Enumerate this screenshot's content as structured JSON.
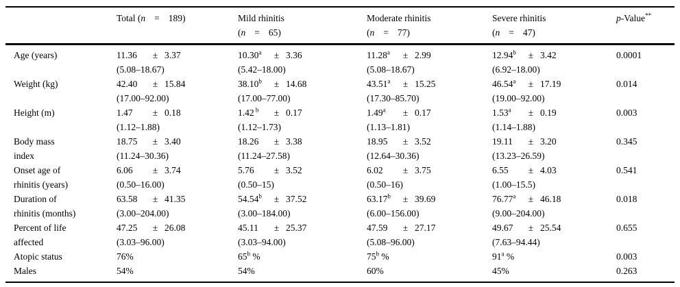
{
  "table": {
    "columns": [
      {
        "empty": ""
      },
      {
        "pre": "Total (",
        "n": "n",
        "eq": "=",
        "post": "189)"
      },
      {
        "line1": "Mild rhinitis",
        "pre": "(",
        "n": "n",
        "eq": "=",
        "post": "65)"
      },
      {
        "line1": "Moderate rhinitis",
        "pre": "(",
        "n": "n",
        "eq": "=",
        "post": "77)"
      },
      {
        "line1": "Severe rhinitis",
        "pre": "(",
        "n": "n",
        "eq": "=",
        "post": "47)"
      },
      {
        "p_pre": "p",
        "p_rest": "-Value",
        "sup": "**"
      }
    ],
    "rows": [
      {
        "label": "Age (years)",
        "label2": "",
        "cells": [
          {
            "v": "11.36",
            "sup": "",
            "pm": "±",
            "sd": "3.37",
            "range": "(5.08–18.67)"
          },
          {
            "v": "10.30",
            "sup": "a",
            "pm": "±",
            "sd": "3.36",
            "range": "(5.42–18.00)"
          },
          {
            "v": "11.28",
            "sup": "a",
            "pm": "±",
            "sd": "2.99",
            "range": "(5.08–18.67)"
          },
          {
            "v": "12.94",
            "sup": "b",
            "pm": "±",
            "sd": "3.42",
            "range": "(6.92–18.00)"
          }
        ],
        "p": "0.0001"
      },
      {
        "label": "Weight (kg)",
        "label2": "",
        "cells": [
          {
            "v": "42.40",
            "sup": "",
            "pm": "±",
            "sd": "15.84",
            "range": "(17.00–92.00)"
          },
          {
            "v": "38.10",
            "sup": "b",
            "pm": "±",
            "sd": "14.68",
            "range": "(17.00–77.00)"
          },
          {
            "v": "43.51",
            "sup": "a",
            "pm": "±",
            "sd": "15.25",
            "range": "(17.30–85.70)"
          },
          {
            "v": "46.54",
            "sup": "a",
            "pm": "±",
            "sd": "17.19",
            "range": "(19.00–92.00)"
          }
        ],
        "p": "0.014"
      },
      {
        "label": "Height (m)",
        "label2": "",
        "cells": [
          {
            "v": "1.47",
            "sup": "",
            "pm": "±",
            "sd": "0.18",
            "range": "(1.12–1.88)"
          },
          {
            "v": "1.42",
            "sup": " b",
            "pm": "±",
            "sd": "0.17",
            "range": "(1.12–1.73)"
          },
          {
            "v": "1.49",
            "sup": "a",
            "pm": "±",
            "sd": "0.17",
            "range": "(1.13–1.81)"
          },
          {
            "v": "1.53",
            "sup": "a",
            "pm": "±",
            "sd": "0.19",
            "range": "(1.14–1.88)"
          }
        ],
        "p": "0.003"
      },
      {
        "label": "Body mass",
        "label2": "index",
        "cells": [
          {
            "v": "18.75",
            "sup": "",
            "pm": "±",
            "sd": "3.40",
            "range": "(11.24–30.36)"
          },
          {
            "v": "18.26",
            "sup": "",
            "pm": "±",
            "sd": "3.38",
            "range": "(11.24–27.58)"
          },
          {
            "v": "18.95",
            "sup": "",
            "pm": "±",
            "sd": "3.52",
            "range": "(12.64–30.36)"
          },
          {
            "v": "19.11",
            "sup": "",
            "pm": "±",
            "sd": "3.20",
            "range": "(13.23–26.59)"
          }
        ],
        "p": "0.345"
      },
      {
        "label": "Onset age of",
        "label2": "rhinitis (years)",
        "cells": [
          {
            "v": "6.06",
            "sup": "",
            "pm": "±",
            "sd": "3.74",
            "range": "(0.50–16.00)"
          },
          {
            "v": "5.76",
            "sup": "",
            "pm": "±",
            "sd": "3.52",
            "range": "(0.50–15)"
          },
          {
            "v": "6.02",
            "sup": "",
            "pm": "±",
            "sd": "3.75",
            "range": "(0.50–16)"
          },
          {
            "v": "6.55",
            "sup": "",
            "pm": "±",
            "sd": "4.03",
            "range": "(1.00–15.5)"
          }
        ],
        "p": "0.541"
      },
      {
        "label": "Duration of",
        "label2": "rhinitis (months)",
        "cells": [
          {
            "v": "63.58",
            "sup": "",
            "pm": "±",
            "sd": "41.35",
            "range": "(3.00–204.00)"
          },
          {
            "v": "54.54",
            "sup": "b",
            "pm": "±",
            "sd": "37.52",
            "range": "(3.00–184.00)"
          },
          {
            "v": "63.17",
            "sup": "b",
            "pm": "±",
            "sd": "39.69",
            "range": "(6.00–156.00)"
          },
          {
            "v": "76.77",
            "sup": "a",
            "pm": "±",
            "sd": "46.18",
            "range": "(9.00–204.00)"
          }
        ],
        "p": "0.018"
      },
      {
        "label": "Percent of life",
        "label2": "affected",
        "cells": [
          {
            "v": "47.25",
            "sup": "",
            "pm": "±",
            "sd": "26.08",
            "range": "(3.03–96.00)"
          },
          {
            "v": "45.11",
            "sup": "",
            "pm": "±",
            "sd": "25.37",
            "range": "(3.03–94.00)"
          },
          {
            "v": "47.59",
            "sup": "",
            "pm": "±",
            "sd": "27.17",
            "range": "(5.08–96.00)"
          },
          {
            "v": "49.67",
            "sup": "",
            "pm": "±",
            "sd": "25.54",
            "range": "(7.63–94.44)"
          }
        ],
        "p": "0.655"
      },
      {
        "label": "Atopic status",
        "label2": "",
        "cells": [
          {
            "v": "76",
            "sup": "",
            "tail": "%",
            "pm": "",
            "sd": "",
            "range": ""
          },
          {
            "v": "65",
            "sup": "b",
            "tail": " %",
            "pm": "",
            "sd": "",
            "range": ""
          },
          {
            "v": "75",
            "sup": "b",
            "tail": " %",
            "pm": "",
            "sd": "",
            "range": ""
          },
          {
            "v": "91",
            "sup": "a",
            "tail": " %",
            "pm": "",
            "sd": "",
            "range": ""
          }
        ],
        "p": "0.003"
      },
      {
        "label": "Males",
        "label2": "",
        "cells": [
          {
            "v": "54",
            "sup": "",
            "tail": "%",
            "pm": "",
            "sd": "",
            "range": ""
          },
          {
            "v": "54",
            "sup": "",
            "tail": "%",
            "pm": "",
            "sd": "",
            "range": ""
          },
          {
            "v": "60",
            "sup": "",
            "tail": "%",
            "pm": "",
            "sd": "",
            "range": ""
          },
          {
            "v": "45",
            "sup": "",
            "tail": "%",
            "pm": "",
            "sd": "",
            "range": ""
          }
        ],
        "p": "0.263"
      }
    ]
  }
}
